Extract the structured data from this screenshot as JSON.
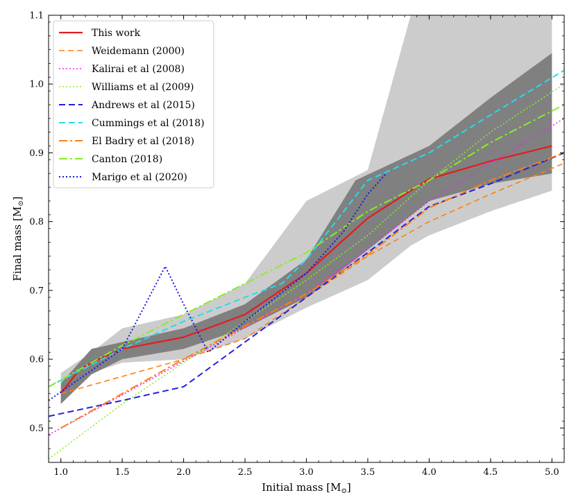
{
  "chart_data": {
    "type": "line",
    "title": "",
    "xlabel": "Initial mass [M",
    "xlabel_sub": "⊙",
    "xlabel_end": "]",
    "ylabel": "Final mass [M",
    "ylabel_sub": "⊙",
    "ylabel_end": "]",
    "xlim": [
      0.9,
      5.1
    ],
    "ylim": [
      0.45,
      1.1
    ],
    "x_ticks": [
      1.0,
      1.5,
      2.0,
      2.5,
      3.0,
      3.5,
      4.0,
      4.5,
      5.0
    ],
    "x_tick_labels": [
      "1.0",
      "1.5",
      "2.0",
      "2.5",
      "3.0",
      "3.5",
      "4.0",
      "4.5",
      "5.0"
    ],
    "y_ticks": [
      0.5,
      0.6,
      0.7,
      0.8,
      0.9,
      1.0,
      1.1
    ],
    "y_tick_labels": [
      "0.5",
      "0.6",
      "0.7",
      "0.8",
      "0.9",
      "1.0",
      "1.1"
    ],
    "legend_position": "top-left",
    "bands": [
      {
        "name": "outer-band",
        "color": "#cccccc",
        "x": [
          1.0,
          1.25,
          1.5,
          2.0,
          2.5,
          3.0,
          3.5,
          3.85,
          4.0,
          4.5,
          5.0
        ],
        "upper": [
          0.58,
          0.61,
          0.645,
          0.665,
          0.71,
          0.83,
          0.875,
          1.1,
          1.1,
          1.1,
          1.1
        ],
        "lower": [
          0.535,
          0.58,
          0.595,
          0.6,
          0.63,
          0.675,
          0.715,
          0.765,
          0.78,
          0.815,
          0.845
        ]
      },
      {
        "name": "inner-band",
        "color": "#808080",
        "x": [
          1.0,
          1.25,
          1.5,
          2.0,
          2.5,
          3.0,
          3.4,
          4.0,
          4.5,
          5.0
        ],
        "upper": [
          0.565,
          0.615,
          0.625,
          0.645,
          0.68,
          0.745,
          0.86,
          0.91,
          0.98,
          1.045
        ],
        "lower": [
          0.535,
          0.578,
          0.6,
          0.615,
          0.645,
          0.69,
          0.745,
          0.83,
          0.855,
          0.87
        ]
      }
    ],
    "series": [
      {
        "name": "This work",
        "color": "#e41a1c",
        "dash": "",
        "width": 2.2,
        "x": [
          1.0,
          1.15,
          1.25,
          1.5,
          2.0,
          2.5,
          3.0,
          3.5,
          4.0,
          4.5,
          5.0
        ],
        "y": [
          0.55,
          0.585,
          0.595,
          0.615,
          0.632,
          0.665,
          0.725,
          0.805,
          0.862,
          0.888,
          0.91
        ]
      },
      {
        "name": "Weidemann (2000)",
        "color": "#ff7f0e",
        "dash": "8,5",
        "width": 1.6,
        "x": [
          1.0,
          1.5,
          2.0,
          2.5,
          3.0,
          3.5,
          4.0,
          4.5,
          5.1
        ],
        "y": [
          0.55,
          0.575,
          0.6,
          0.63,
          0.69,
          0.75,
          0.8,
          0.84,
          0.885
        ]
      },
      {
        "name": "Kalirai et al (2008)",
        "color": "#ee22ee",
        "dash": "2,3",
        "width": 1.6,
        "x": [
          0.9,
          1.5,
          2.0,
          2.5,
          3.0,
          3.5,
          4.0,
          4.5,
          5.1
        ],
        "y": [
          0.49,
          0.548,
          0.597,
          0.646,
          0.695,
          0.76,
          0.83,
          0.885,
          0.95
        ]
      },
      {
        "name": "Williams et al (2009)",
        "color": "#88ee22",
        "dash": "2,3",
        "width": 1.6,
        "x": [
          0.9,
          1.5,
          2.0,
          2.5,
          3.0,
          3.5,
          4.0,
          4.5,
          5.1
        ],
        "y": [
          0.455,
          0.535,
          0.595,
          0.655,
          0.715,
          0.78,
          0.86,
          0.93,
          1.0
        ]
      },
      {
        "name": "Andrews et al (2015)",
        "color": "#1f1fe0",
        "dash": "9,5",
        "width": 2,
        "x": [
          0.9,
          1.5,
          2.0,
          2.5,
          3.0,
          3.5,
          4.0,
          4.5,
          5.1
        ],
        "y": [
          0.517,
          0.54,
          0.56,
          0.625,
          0.69,
          0.755,
          0.822,
          0.855,
          0.9
        ]
      },
      {
        "name": "Cummings et al (2018)",
        "color": "#22ddee",
        "dash": "9,5",
        "width": 2,
        "x": [
          0.9,
          1.5,
          2.0,
          2.5,
          2.8,
          3.0,
          3.5,
          4.0,
          4.5,
          5.1
        ],
        "y": [
          0.56,
          0.615,
          0.655,
          0.69,
          0.71,
          0.745,
          0.86,
          0.9,
          0.955,
          1.02
        ]
      },
      {
        "name": "El Badry et al (2018)",
        "color": "#ff7f0e",
        "dash": "12,4,3,4",
        "width": 2,
        "x": [
          1.0,
          1.5,
          2.0,
          2.5,
          3.0,
          3.5,
          4.0,
          4.5,
          5.1
        ],
        "y": [
          0.5,
          0.55,
          0.6,
          0.648,
          0.695,
          0.752,
          0.82,
          0.86,
          0.9
        ]
      },
      {
        "name": "Canton (2018)",
        "color": "#88ee22",
        "dash": "12,4,3,4",
        "width": 2,
        "x": [
          0.9,
          1.5,
          2.0,
          2.5,
          3.0,
          3.5,
          4.0,
          4.5,
          5.1
        ],
        "y": [
          0.56,
          0.62,
          0.665,
          0.71,
          0.755,
          0.815,
          0.86,
          0.915,
          0.97
        ]
      },
      {
        "name": "Marigo et al (2020)",
        "color": "#1515dd",
        "dash": "2,3",
        "width": 2,
        "x": [
          0.9,
          1.5,
          1.85,
          2.0,
          2.2,
          2.5,
          3.0,
          3.3,
          3.5,
          3.65
        ],
        "y": [
          0.54,
          0.615,
          0.735,
          0.68,
          0.61,
          0.655,
          0.725,
          0.785,
          0.84,
          0.87
        ]
      }
    ]
  }
}
